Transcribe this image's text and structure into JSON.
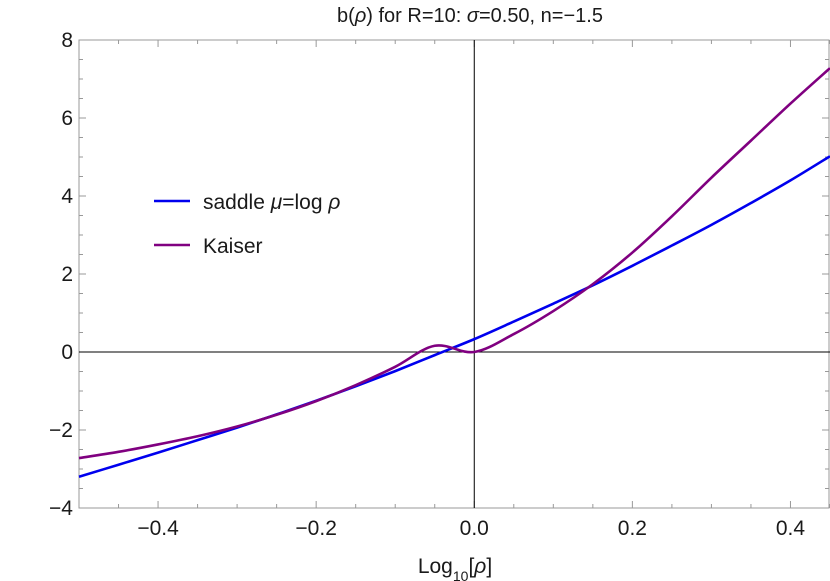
{
  "chart_data": {
    "type": "line",
    "title_parts": [
      "b(",
      "ρ",
      ") for R=10: ",
      "σ",
      "=0.50, n=−1.5"
    ],
    "xlabel_parts": [
      "Log",
      "10",
      "[",
      "ρ",
      "]"
    ],
    "ylabel": "",
    "xlim": [
      -0.5,
      0.45
    ],
    "ylim": [
      -4,
      8
    ],
    "xticks": [
      -0.4,
      -0.2,
      0.0,
      0.2,
      0.4
    ],
    "xtick_labels": [
      "−0.4",
      "−0.2",
      "0.0",
      "0.2",
      "0.4"
    ],
    "yticks": [
      -4,
      -2,
      0,
      2,
      4,
      6,
      8
    ],
    "ytick_labels": [
      "−4",
      "−2",
      "0",
      "2",
      "4",
      "6",
      "8"
    ],
    "grid": false,
    "legend_position": "left",
    "series": [
      {
        "name_parts": [
          "saddle ",
          "μ",
          "=log ",
          "ρ"
        ],
        "color": "#0000ee",
        "x": [
          -0.5,
          -0.45,
          -0.4,
          -0.35,
          -0.3,
          -0.25,
          -0.2,
          -0.15,
          -0.1,
          -0.05,
          0.0,
          0.05,
          0.1,
          0.15,
          0.2,
          0.25,
          0.3,
          0.35,
          0.4,
          0.45
        ],
        "y": [
          -3.2,
          -2.89,
          -2.58,
          -2.26,
          -1.94,
          -1.6,
          -1.25,
          -0.88,
          -0.49,
          -0.08,
          0.33,
          0.78,
          1.24,
          1.71,
          2.21,
          2.73,
          3.26,
          3.82,
          4.4,
          5.02
        ]
      },
      {
        "name_parts": [
          "Kaiser"
        ],
        "color": "#800080",
        "x": [
          -0.5,
          -0.45,
          -0.4,
          -0.35,
          -0.3,
          -0.25,
          -0.2,
          -0.15,
          -0.1,
          -0.05,
          0.0,
          0.05,
          0.1,
          0.15,
          0.2,
          0.25,
          0.3,
          0.35,
          0.4,
          0.45
        ],
        "y": [
          -2.72,
          -2.56,
          -2.37,
          -2.16,
          -1.91,
          -1.61,
          -1.26,
          -0.85,
          -0.38,
          0.16,
          0.0,
          0.46,
          1.05,
          1.74,
          2.55,
          3.48,
          4.47,
          5.42,
          6.37,
          7.28
        ]
      }
    ]
  }
}
